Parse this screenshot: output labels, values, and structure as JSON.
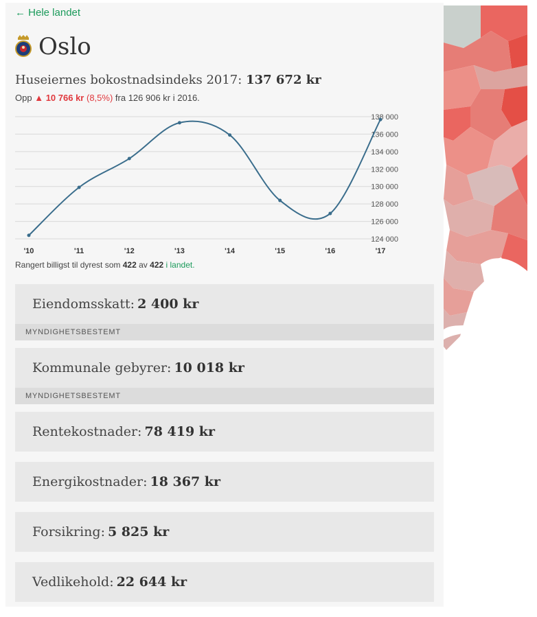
{
  "nav": {
    "back_label": "← Hele landet"
  },
  "header": {
    "city": "Oslo",
    "crest_icon": "oslo-coat-of-arms-icon"
  },
  "index": {
    "label": "Huseiernes bokostnadsindeks 2017:",
    "value": "137 672 kr",
    "change_prefix": "Opp",
    "change_arrow": "▲",
    "change_amount": "10 766 kr",
    "change_pct": "(8,5%)",
    "change_suffix": "fra 126 906 kr i 2016."
  },
  "chart_data": {
    "type": "line",
    "x": [
      "'10",
      "'11",
      "'12",
      "'13",
      "'14",
      "'15",
      "'16",
      "'17"
    ],
    "series": [
      {
        "values": [
          124400,
          129900,
          133200,
          137300,
          135900,
          128400,
          126906,
          137672
        ]
      }
    ],
    "ylim": [
      124000,
      138000
    ],
    "yticks": [
      {
        "value": 138000,
        "label": "138 000"
      },
      {
        "value": 136000,
        "label": "136 000"
      },
      {
        "value": 134000,
        "label": "134 000"
      },
      {
        "value": 132000,
        "label": "132 000"
      },
      {
        "value": 130000,
        "label": "130 000"
      },
      {
        "value": 128000,
        "label": "128 000"
      },
      {
        "value": 126000,
        "label": "126 000"
      },
      {
        "value": 124000,
        "label": "124 000"
      }
    ],
    "grid": true,
    "line_color": "#3a6d8c"
  },
  "rank": {
    "prefix": "Rangert billigst til dyrest som",
    "position": "422",
    "of": "av",
    "total": "422",
    "suffix_link": "i landet."
  },
  "cards": [
    {
      "label": "Eiendomsskatt:",
      "value": "2 400 kr",
      "tag": "MYNDIGHETSBESTEMT"
    },
    {
      "label": "Kommunale gebyrer:",
      "value": "10 018 kr",
      "tag": "MYNDIGHETSBESTEMT"
    },
    {
      "label": "Rentekostnader:",
      "value": "78 419 kr"
    },
    {
      "label": "Energikostnader:",
      "value": "18 367 kr"
    },
    {
      "label": "Forsikring:",
      "value": "5 825 kr"
    },
    {
      "label": "Vedlikehold:",
      "value": "22 644 kr"
    }
  ],
  "colors": {
    "accent_green": "#1a9a5a",
    "up_red": "#e0393e",
    "map_red": "#e8564f"
  }
}
